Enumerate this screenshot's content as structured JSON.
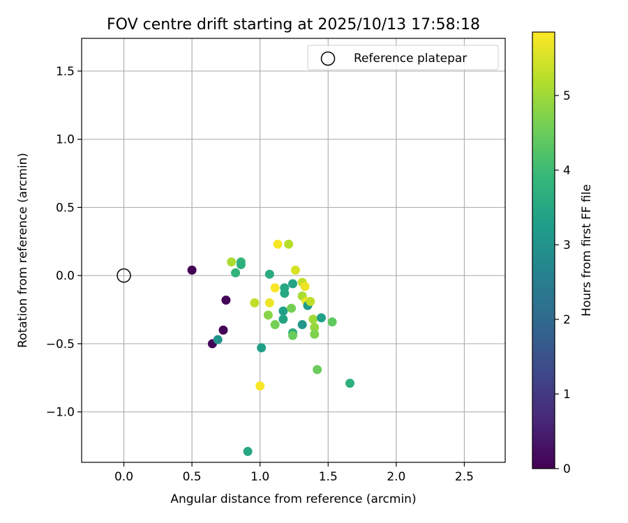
{
  "chart_data": {
    "type": "scatter",
    "title": "FOV centre drift starting at 2025/10/13 17:58:18",
    "xlabel": "Angular distance from reference (arcmin)",
    "ylabel": "Rotation from reference (arcmin)",
    "xlim": [
      -0.31,
      2.8
    ],
    "ylim": [
      -1.37,
      1.74
    ],
    "xticks": [
      0.0,
      0.5,
      1.0,
      1.5,
      2.0,
      2.5
    ],
    "xtick_labels": [
      "0.0",
      "0.5",
      "1.0",
      "1.5",
      "2.0",
      "2.5"
    ],
    "yticks": [
      -1.0,
      -0.5,
      0.0,
      0.5,
      1.0,
      1.5
    ],
    "ytick_labels": [
      "−1.0",
      "−0.5",
      "0.0",
      "0.5",
      "1.0",
      "1.5"
    ],
    "grid": true,
    "legend": {
      "label": "Reference platepar",
      "location": "upper right"
    },
    "reference_point": {
      "x": 0.0,
      "y": 0.0
    },
    "colorbar": {
      "label": "Hours from first FF file",
      "colormap": "viridis",
      "min": 0,
      "max": 5.85,
      "ticks": [
        0,
        1,
        2,
        3,
        4,
        5
      ],
      "tick_labels": [
        "0",
        "1",
        "2",
        "3",
        "4",
        "5"
      ],
      "stops": [
        "#440154",
        "#482878",
        "#3e4989",
        "#31688e",
        "#26828e",
        "#1f9e89",
        "#35b779",
        "#6ece58",
        "#b5de2b",
        "#fde725"
      ]
    },
    "points": [
      {
        "x": 0.5,
        "y": 0.04,
        "hours": 0.0
      },
      {
        "x": 0.75,
        "y": -0.18,
        "hours": 0.05
      },
      {
        "x": 0.73,
        "y": -0.4,
        "hours": 0.05
      },
      {
        "x": 0.65,
        "y": -0.5,
        "hours": 0.05
      },
      {
        "x": 0.69,
        "y": -0.47,
        "hours": 3.0
      },
      {
        "x": 0.91,
        "y": -1.29,
        "hours": 3.5
      },
      {
        "x": 1.01,
        "y": -0.53,
        "hours": 3.3
      },
      {
        "x": 1.66,
        "y": -0.79,
        "hours": 3.7
      },
      {
        "x": 1.42,
        "y": -0.69,
        "hours": 4.5
      },
      {
        "x": 1.0,
        "y": -0.81,
        "hours": 5.8
      },
      {
        "x": 0.86,
        "y": 0.1,
        "hours": 3.9
      },
      {
        "x": 0.86,
        "y": 0.08,
        "hours": 3.7
      },
      {
        "x": 0.82,
        "y": 0.02,
        "hours": 3.8
      },
      {
        "x": 0.79,
        "y": 0.1,
        "hours": 5.1
      },
      {
        "x": 0.96,
        "y": -0.2,
        "hours": 5.3
      },
      {
        "x": 1.07,
        "y": 0.01,
        "hours": 3.6
      },
      {
        "x": 1.07,
        "y": -0.2,
        "hours": 5.7
      },
      {
        "x": 1.06,
        "y": -0.29,
        "hours": 4.8
      },
      {
        "x": 1.11,
        "y": -0.36,
        "hours": 4.6
      },
      {
        "x": 1.11,
        "y": -0.09,
        "hours": 5.8
      },
      {
        "x": 1.13,
        "y": 0.23,
        "hours": 5.8
      },
      {
        "x": 1.21,
        "y": 0.23,
        "hours": 5.2
      },
      {
        "x": 1.26,
        "y": 0.04,
        "hours": 5.5
      },
      {
        "x": 1.24,
        "y": -0.06,
        "hours": 3.4
      },
      {
        "x": 1.18,
        "y": -0.09,
        "hours": 3.5
      },
      {
        "x": 1.18,
        "y": -0.13,
        "hours": 3.5
      },
      {
        "x": 1.17,
        "y": -0.26,
        "hours": 3.3
      },
      {
        "x": 1.17,
        "y": -0.32,
        "hours": 3.4
      },
      {
        "x": 1.23,
        "y": -0.24,
        "hours": 4.6
      },
      {
        "x": 1.24,
        "y": -0.42,
        "hours": 3.6
      },
      {
        "x": 1.24,
        "y": -0.44,
        "hours": 4.5
      },
      {
        "x": 1.31,
        "y": -0.05,
        "hours": 5.3
      },
      {
        "x": 1.33,
        "y": -0.08,
        "hours": 5.7
      },
      {
        "x": 1.31,
        "y": -0.15,
        "hours": 5.1
      },
      {
        "x": 1.34,
        "y": -0.19,
        "hours": 5.7
      },
      {
        "x": 1.35,
        "y": -0.22,
        "hours": 3.2
      },
      {
        "x": 1.37,
        "y": -0.19,
        "hours": 5.3
      },
      {
        "x": 1.31,
        "y": -0.36,
        "hours": 3.1
      },
      {
        "x": 1.39,
        "y": -0.32,
        "hours": 5.0
      },
      {
        "x": 1.4,
        "y": -0.38,
        "hours": 4.9
      },
      {
        "x": 1.4,
        "y": -0.43,
        "hours": 4.7
      },
      {
        "x": 1.45,
        "y": -0.31,
        "hours": 3.3
      },
      {
        "x": 1.53,
        "y": -0.34,
        "hours": 4.4
      }
    ]
  }
}
